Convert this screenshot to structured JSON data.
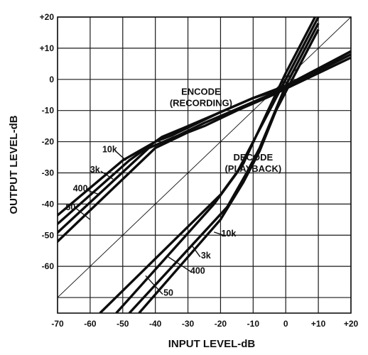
{
  "chart_data": {
    "type": "line",
    "xlabel": "INPUT LEVEL-dB",
    "ylabel": "OUTPUT LEVEL-dB",
    "xlim": [
      -70,
      20
    ],
    "ylim": [
      -75,
      20
    ],
    "grid": true,
    "x_ticks": [
      {
        "value": -70,
        "label": "-70"
      },
      {
        "value": -60,
        "label": "-60"
      },
      {
        "value": -50,
        "label": "-50"
      },
      {
        "value": -40,
        "label": "-40"
      },
      {
        "value": -30,
        "label": "-30"
      },
      {
        "value": -20,
        "label": "-20"
      },
      {
        "value": -10,
        "label": "-10"
      },
      {
        "value": 0,
        "label": "0"
      },
      {
        "value": 10,
        "label": "+10"
      },
      {
        "value": 20,
        "label": "+20"
      }
    ],
    "y_ticks": [
      {
        "value": 20,
        "label": "+20"
      },
      {
        "value": 10,
        "label": "+10"
      },
      {
        "value": 0,
        "label": "0"
      },
      {
        "value": -10,
        "label": "-10"
      },
      {
        "value": -20,
        "label": "-20"
      },
      {
        "value": -30,
        "label": "-30"
      },
      {
        "value": -40,
        "label": "-40"
      },
      {
        "value": -50,
        "label": "-50"
      },
      {
        "value": -60,
        "label": "-60"
      }
    ],
    "reference_line": {
      "x": [
        -75,
        20
      ],
      "y": [
        -75,
        20
      ]
    },
    "groups": [
      {
        "label_lines": [
          "ENCODE",
          "(RECORDING)"
        ],
        "label_at": {
          "x": -26,
          "y": -5
        },
        "series": [
          {
            "name": "10k",
            "x": [
              -75,
              -50,
              -40,
              -35,
              -30,
              -20,
              -10,
              0,
              20
            ],
            "y": [
              -48,
              -26,
              -20,
              -18,
              -15.5,
              -10.5,
              -6,
              -2,
              9
            ]
          },
          {
            "name": "3k",
            "x": [
              -75,
              -48,
              -38,
              -30,
              -20,
              -10,
              0,
              20
            ],
            "y": [
              -51,
              -26,
              -18.5,
              -15,
              -10.5,
              -6,
              -2.5,
              9
            ]
          },
          {
            "name": "400",
            "x": [
              -75,
              -42,
              -33,
              -25,
              -15,
              -5,
              0,
              20
            ],
            "y": [
              -54,
              -22,
              -18,
              -14,
              -9.5,
              -5,
              -2.5,
              8
            ]
          },
          {
            "name": "50",
            "x": [
              -75,
              -40,
              -30,
              -25,
              -15,
              -5,
              0,
              20
            ],
            "y": [
              -57,
              -22,
              -17,
              -15,
              -10,
              -5.5,
              -3,
              7
            ]
          }
        ]
      },
      {
        "label_lines": [
          "DECODE",
          "(PLAYBACK)"
        ],
        "label_at": {
          "x": -10,
          "y": -26
        },
        "series": [
          {
            "name": "10k",
            "x": [
              -57,
              -20,
              -13,
              -9,
              -5,
              0,
              9
            ],
            "y": [
              -75,
              -37,
              -27,
              -18,
              -9,
              2,
              20
            ]
          },
          {
            "name": "3k",
            "x": [
              -52,
              -22,
              -15,
              -10,
              -5,
              0,
              10
            ],
            "y": [
              -75,
              -40,
              -30,
              -20,
              -10,
              0,
              20
            ]
          },
          {
            "name": "400",
            "x": [
              -48,
              -18,
              -12,
              -8,
              -3,
              0,
              10
            ],
            "y": [
              -75,
              -41,
              -30,
              -22,
              -9.5,
              -2,
              18
            ]
          },
          {
            "name": "50",
            "x": [
              -45,
              -20,
              -13,
              -8,
              -3,
              0,
              10
            ],
            "y": [
              -75,
              -45,
              -33,
              -23,
              -10,
              -4,
              16
            ]
          }
        ]
      }
    ],
    "annotations": [
      {
        "text": "10k",
        "x": -54,
        "y": -22.5,
        "line_to": {
          "x": -49,
          "y": -26
        }
      },
      {
        "text": "3k",
        "x": -58.5,
        "y": -29,
        "line_to": {
          "x": -53,
          "y": -32
        }
      },
      {
        "text": "400",
        "x": -63,
        "y": -35,
        "line_to": {
          "x": -57,
          "y": -37
        }
      },
      {
        "text": "50",
        "x": -66,
        "y": -41,
        "line_to": {
          "x": -60,
          "y": -45
        }
      },
      {
        "text": "10k",
        "x": -17.5,
        "y": -49.5,
        "line_to": {
          "x": -22,
          "y": -49
        }
      },
      {
        "text": "3k",
        "x": -24.5,
        "y": -56.5,
        "line_to": {
          "x": -29,
          "y": -53
        }
      },
      {
        "text": "400",
        "x": -27,
        "y": -61.5,
        "line_to": {
          "x": -36,
          "y": -57
        }
      },
      {
        "text": "50",
        "x": -36,
        "y": -68.5,
        "line_to": {
          "x": -43,
          "y": -63
        }
      }
    ]
  }
}
